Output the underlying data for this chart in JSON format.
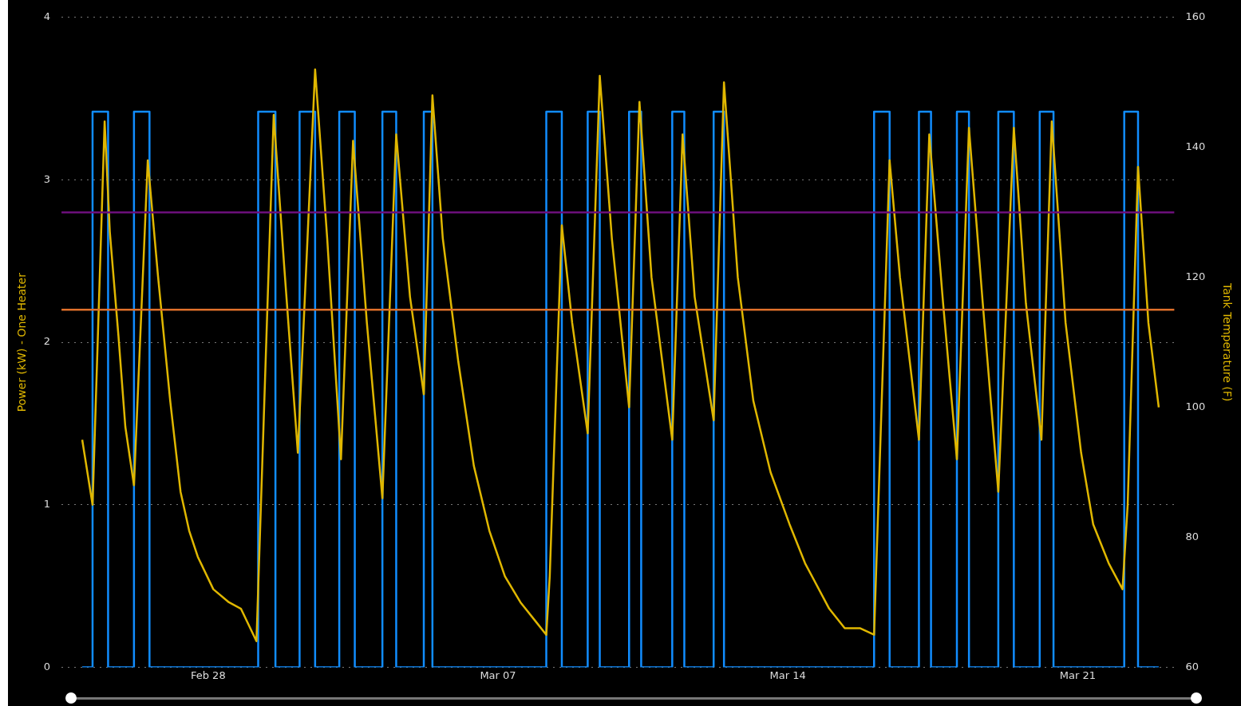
{
  "chart_data": {
    "type": "line",
    "ylabel": "Power (kW) - One Heater",
    "y2label": "Tank Temperature (F)",
    "xlim": [
      "--02-24T11:00",
      "--03-23T08:00"
    ],
    "xticks": [
      {
        "value": "--02-28",
        "label": "Feb 28"
      },
      {
        "value": "--03-07",
        "label": "Mar 07"
      },
      {
        "value": "--03-14",
        "label": "Mar 14"
      },
      {
        "value": "--03-21",
        "label": "Mar 21"
      }
    ],
    "ylim": [
      0,
      4
    ],
    "yticks": [
      0,
      1,
      2,
      3,
      4
    ],
    "y2lim": [
      60,
      160
    ],
    "y2ticks": [
      60,
      80,
      100,
      120,
      140,
      160
    ],
    "grid": "y",
    "series": [
      {
        "type": "step",
        "color": "#118dff",
        "x": [
          "--02-24T23:00",
          "--02-25T05:00",
          "--02-25T14:00",
          "--02-26T05:00",
          "--02-26T14:00",
          "--03-01T05:00",
          "--03-01T15:00",
          "--03-02T05:00",
          "--03-02T14:00",
          "--03-03T04:00",
          "--03-03T13:00",
          "--03-04T05:00",
          "--03-04T13:00",
          "--03-05T05:00",
          "--03-05T10:00",
          "--03-08T04:00",
          "--03-08T13:00",
          "--03-09T04:00",
          "--03-09T11:00",
          "--03-10T04:00",
          "--03-10T11:00",
          "--03-11T05:00",
          "--03-11T12:00",
          "--03-12T05:00",
          "--03-12T11:00",
          "--03-16T02:00",
          "--03-16T11:00",
          "--03-17T04:00",
          "--03-17T11:00",
          "--03-18T02:00",
          "--03-18T09:00",
          "--03-19T02:00",
          "--03-19T11:00",
          "--03-20T02:00",
          "--03-20T10:00",
          "--03-22T03:00",
          "--03-22T11:00",
          "--03-22T23:00"
        ],
        "values": [
          0,
          3.42,
          0,
          3.42,
          0,
          3.42,
          0,
          3.42,
          0,
          3.42,
          0,
          3.42,
          0,
          3.42,
          0,
          3.42,
          0,
          3.42,
          0,
          3.42,
          0,
          3.42,
          0,
          3.42,
          0,
          3.42,
          0,
          3.42,
          0,
          3.42,
          0,
          3.42,
          0,
          3.42,
          0,
          3.42,
          0,
          0
        ]
      },
      {
        "type": "line",
        "axis": "y2",
        "color": "#e0b700",
        "x": [
          "--02-24T23:00",
          "--02-25T05:00",
          "--02-25T12:00",
          "--02-25T15:00",
          "--02-25T20:00",
          "--02-26T00:00",
          "--02-26T05:00",
          "--02-26T13:00",
          "--02-26T19:00",
          "--02-27T02:00",
          "--02-27T08:00",
          "--02-27T13:00",
          "--02-27T18:00",
          "--02-28T03:00",
          "--02-28T12:00",
          "--02-28T19:00",
          "--03-01T04:00",
          "--03-01T14:00",
          "--03-01T20:00",
          "--03-02T04:00",
          "--03-02T14:00",
          "--03-02T21:00",
          "--03-03T05:00",
          "--03-03T12:00",
          "--03-03T20:00",
          "--03-04T05:00",
          "--03-04T13:00",
          "--03-04T21:00",
          "--03-05T05:00",
          "--03-05T10:00",
          "--03-05T16:00",
          "--03-06T01:00",
          "--03-06T10:00",
          "--03-06T19:00",
          "--03-07T04:00",
          "--03-07T13:00",
          "--03-07T22:00",
          "--03-08T04:00",
          "--03-08T06:00",
          "--03-08T13:00",
          "--03-08T19:00",
          "--03-09T04:00",
          "--03-09T11:00",
          "--03-09T18:00",
          "--03-10T04:00",
          "--03-10T10:00",
          "--03-10T17:00",
          "--03-11T05:00",
          "--03-11T11:00",
          "--03-11T18:00",
          "--03-12T05:00",
          "--03-12T11:00",
          "--03-12T19:00",
          "--03-13T04:00",
          "--03-13T14:00",
          "--03-14T01:00",
          "--03-14T10:00",
          "--03-15T00:00",
          "--03-15T09:00",
          "--03-15T18:00",
          "--03-16T02:00",
          "--03-16T11:00",
          "--03-16T17:00",
          "--03-17T04:00",
          "--03-17T10:00",
          "--03-17T18:00",
          "--03-18T02:00",
          "--03-18T09:00",
          "--03-18T17:00",
          "--03-19T02:00",
          "--03-19T11:00",
          "--03-19T18:00",
          "--03-20T03:00",
          "--03-20T09:00",
          "--03-20T17:00",
          "--03-21T02:00",
          "--03-21T09:00",
          "--03-21T18:00",
          "--03-22T02:00",
          "--03-22T05:00",
          "--03-22T11:00",
          "--03-22T17:00",
          "--03-22T23:00"
        ],
        "values": [
          95,
          85,
          144,
          127,
          111,
          97,
          88,
          138,
          120,
          101,
          87,
          81,
          77,
          72,
          70,
          69,
          64,
          145,
          122,
          93,
          152,
          126,
          92,
          141,
          113,
          86,
          142,
          117,
          102,
          148,
          126,
          107,
          91,
          81,
          74,
          70,
          67,
          65,
          74,
          128,
          113,
          96,
          151,
          126,
          100,
          147,
          120,
          95,
          142,
          117,
          98,
          150,
          120,
          101,
          90,
          82,
          76,
          69,
          66,
          66,
          65,
          138,
          120,
          95,
          142,
          116,
          92,
          143,
          116,
          87,
          143,
          116,
          95,
          144,
          113,
          93,
          82,
          76,
          72,
          85,
          137,
          113,
          100
        ]
      }
    ],
    "ref_lines": [
      {
        "axis": "y2",
        "value": 130,
        "color": "#6b0f7a"
      },
      {
        "axis": "y2",
        "value": 115,
        "color": "#e0702b"
      }
    ]
  }
}
